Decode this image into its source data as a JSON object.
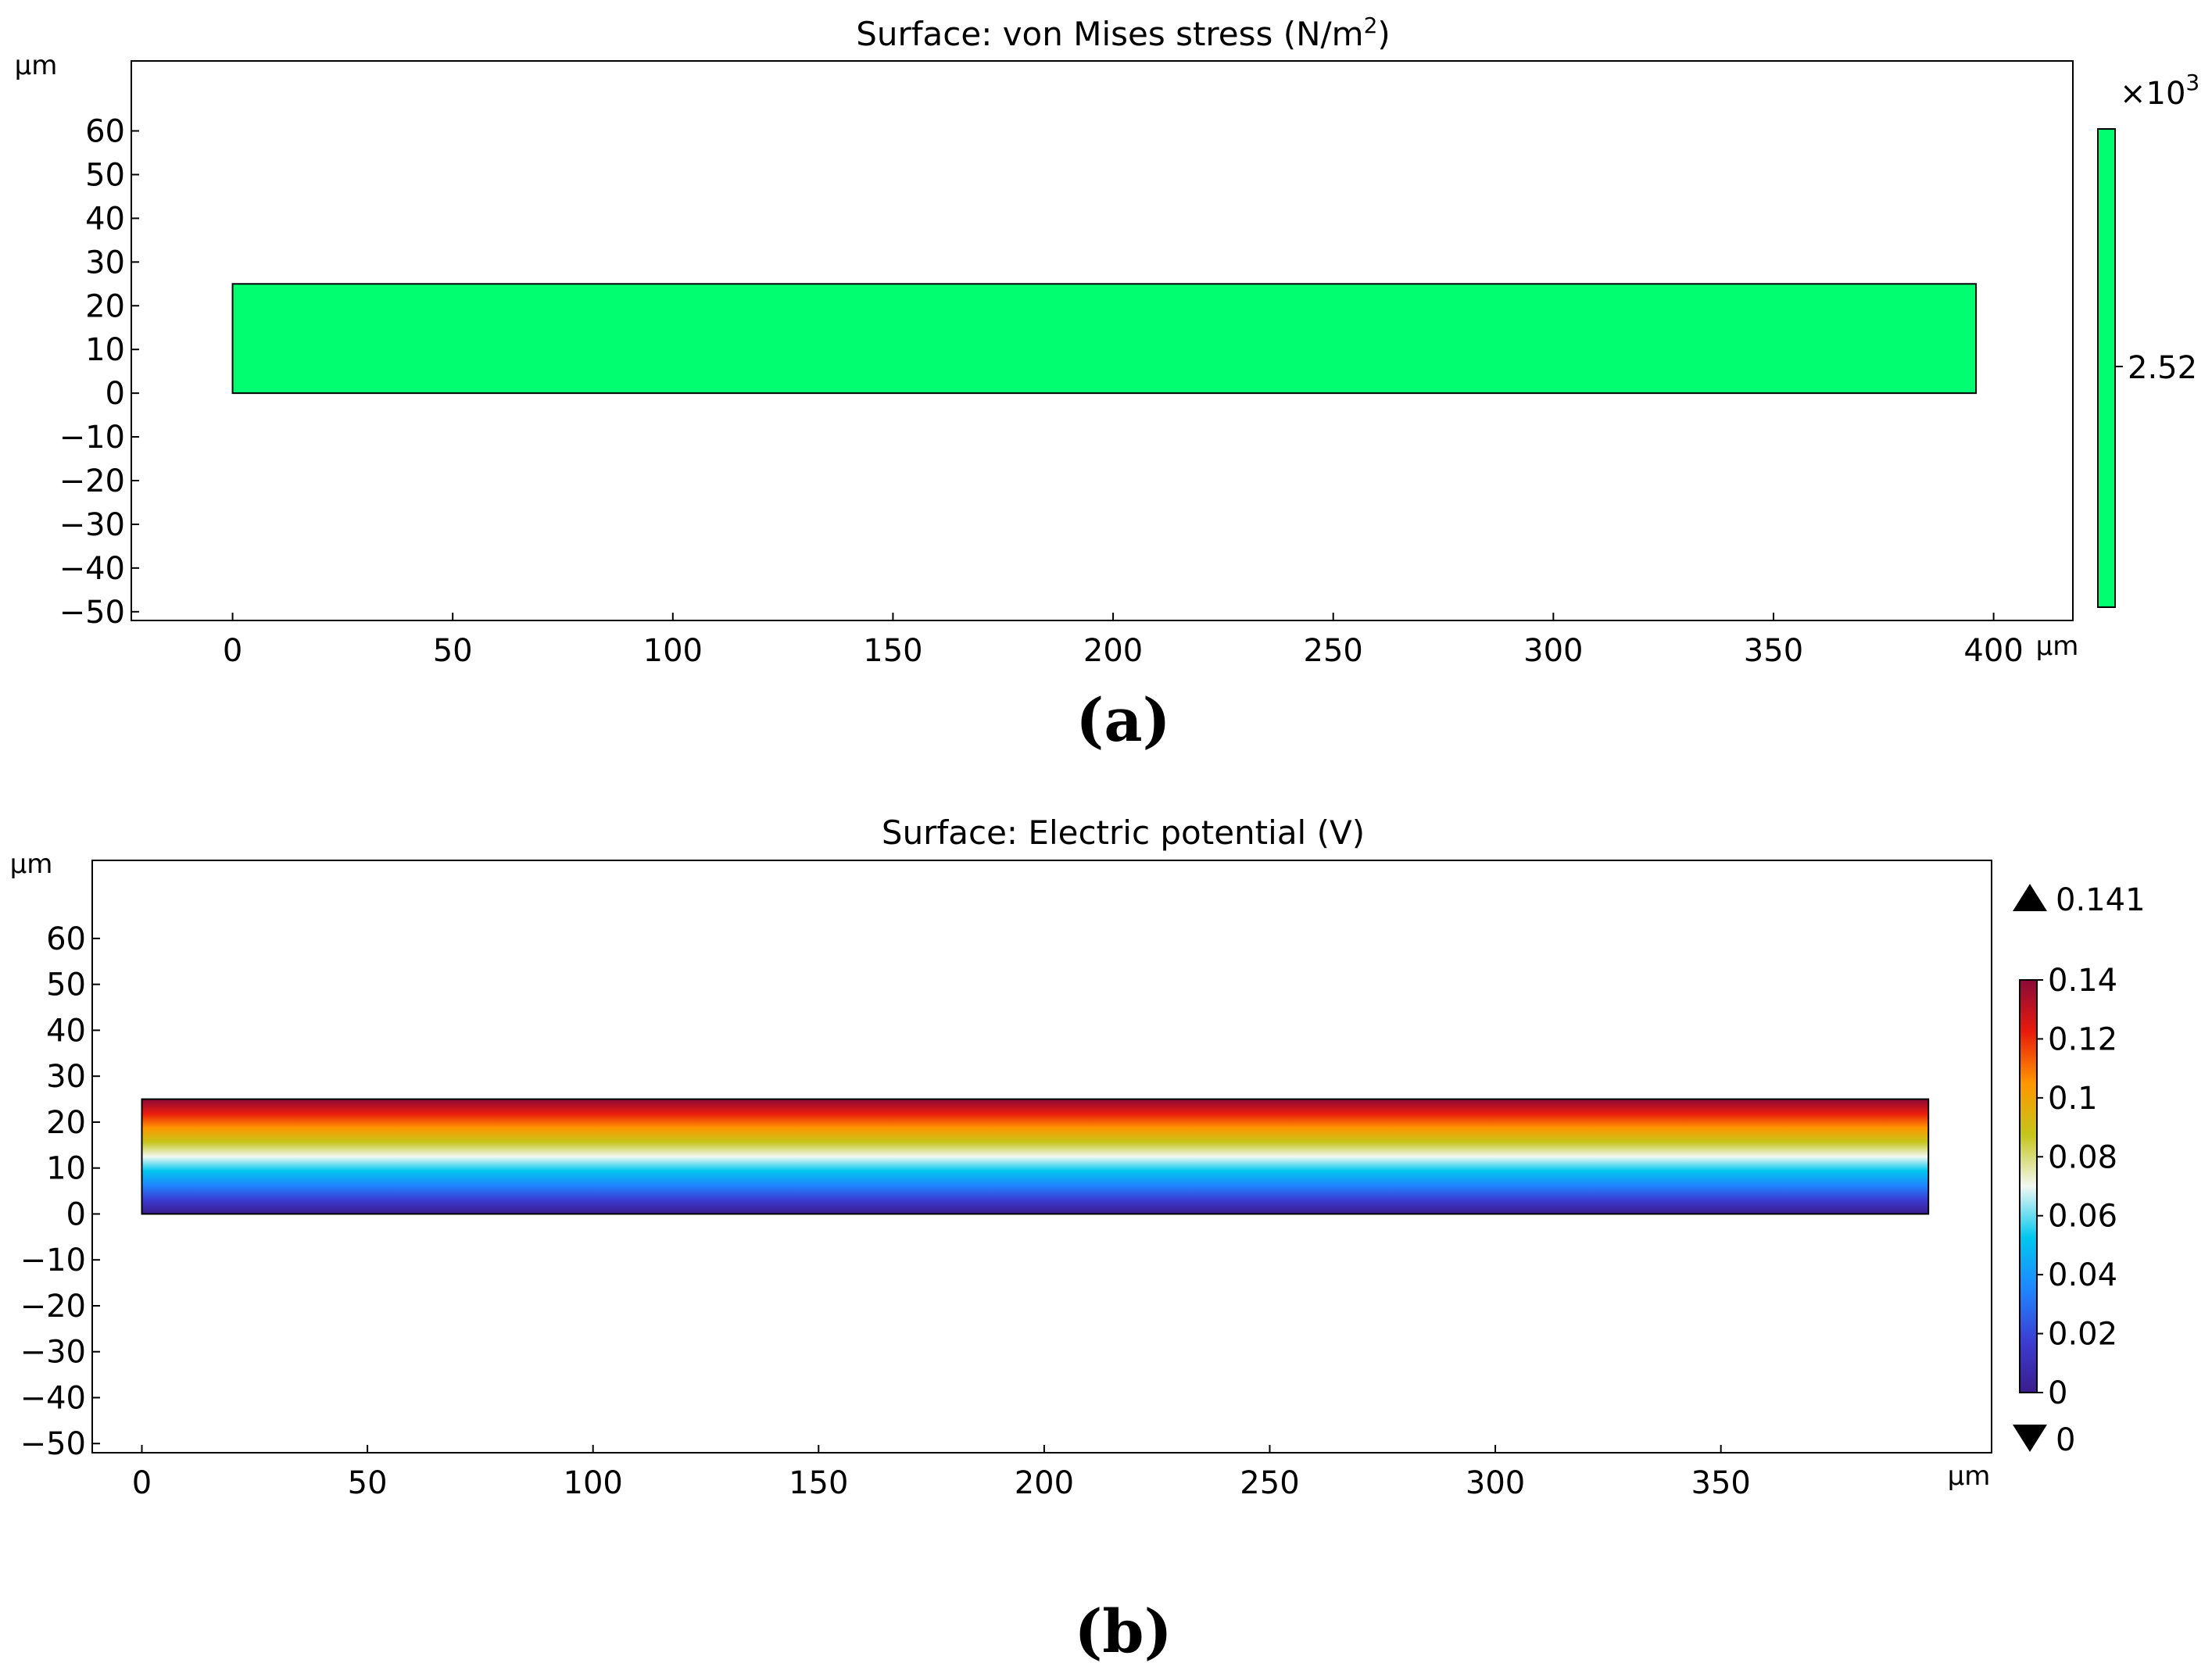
{
  "chart_data": [
    {
      "type": "heatmap",
      "panel_label": "(a)",
      "title": "Surface: von Mises stress (N/m",
      "title_superscript": "2",
      "title_suffix": ")",
      "x_unit": "µm",
      "y_unit": "µm",
      "xlim": [
        -23,
        418
      ],
      "ylim": [
        -52,
        76
      ],
      "x_ticks": [
        0,
        50,
        100,
        150,
        200,
        250,
        300,
        350,
        400
      ],
      "y_ticks": [
        60,
        50,
        40,
        30,
        20,
        10,
        0,
        -10,
        -20,
        -30,
        -40,
        -50
      ],
      "domain": {
        "x": [
          0,
          396
        ],
        "y": [
          0,
          25
        ]
      },
      "field": "uniform",
      "fill_color": "#00ff70",
      "colorbar": {
        "multiplier": "×10",
        "multiplier_exponent": "3",
        "value_label": "2.52",
        "color": "#00ff70"
      }
    },
    {
      "type": "heatmap",
      "panel_label": "(b)",
      "title": "Surface: Electric potential (V)",
      "x_unit": "µm",
      "y_unit": "µm",
      "xlim": [
        -11,
        410
      ],
      "ylim": [
        -52,
        77
      ],
      "x_ticks": [
        0,
        50,
        100,
        150,
        200,
        250,
        300,
        350
      ],
      "y_ticks": [
        60,
        50,
        40,
        30,
        20,
        10,
        0,
        -10,
        -20,
        -30,
        -40,
        -50
      ],
      "domain": {
        "x": [
          0,
          396
        ],
        "y": [
          0,
          25
        ]
      },
      "field": "linear in y, 0 V at y = 0 to 0.141 V at y = 25",
      "value_range": [
        0,
        0.141
      ],
      "colorbar": {
        "max_label": "0.141",
        "min_label": "0",
        "range": [
          0,
          0.14
        ],
        "ticks": [
          "0.14",
          "0.12",
          "0.1",
          "0.08",
          "0.06",
          "0.04",
          "0.02",
          "0"
        ],
        "colormap": [
          "#3b1c8c",
          "#3b3dd3",
          "#1f86ff",
          "#00c7ef",
          "#f2f8f2",
          "#c5c51a",
          "#ff9600",
          "#e81a0c",
          "#8a0a38"
        ]
      }
    }
  ]
}
